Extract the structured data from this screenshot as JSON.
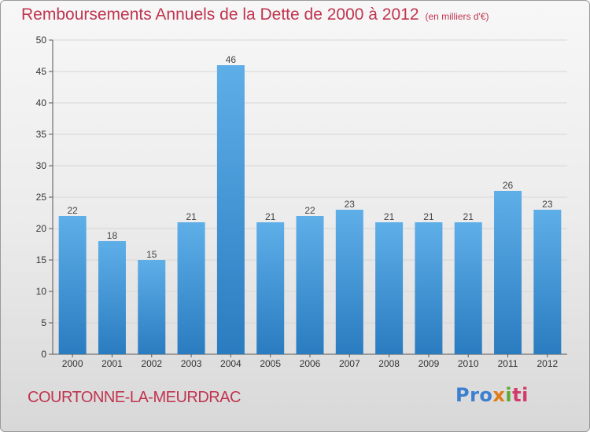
{
  "header": {
    "title": "Remboursements Annuels de la Dette de 2000 à 2012",
    "subtitle": "(en milliers d'€)"
  },
  "footer": {
    "commune": "COURTONNE-LA-MEURDRAC",
    "logo": {
      "p1": "Pro",
      "p2": "x",
      "p3": "i",
      "p4": "ti"
    }
  },
  "colors": {
    "title": "#c0344f",
    "bar_top": "#5eaee8",
    "bar_bottom": "#2a7cc0"
  },
  "chart_data": {
    "type": "bar",
    "title": "Remboursements Annuels de la Dette de 2000 à 2012",
    "subtitle": "(en milliers d'€)",
    "categories": [
      "2000",
      "2001",
      "2002",
      "2003",
      "2004",
      "2005",
      "2006",
      "2007",
      "2008",
      "2009",
      "2010",
      "2011",
      "2012"
    ],
    "values": [
      22,
      18,
      15,
      21,
      46,
      21,
      22,
      23,
      21,
      21,
      21,
      26,
      23
    ],
    "ylim": [
      0,
      50
    ],
    "yticks": [
      0,
      5,
      10,
      15,
      20,
      25,
      30,
      35,
      40,
      45,
      50
    ],
    "grid": true,
    "data_labels": true
  }
}
